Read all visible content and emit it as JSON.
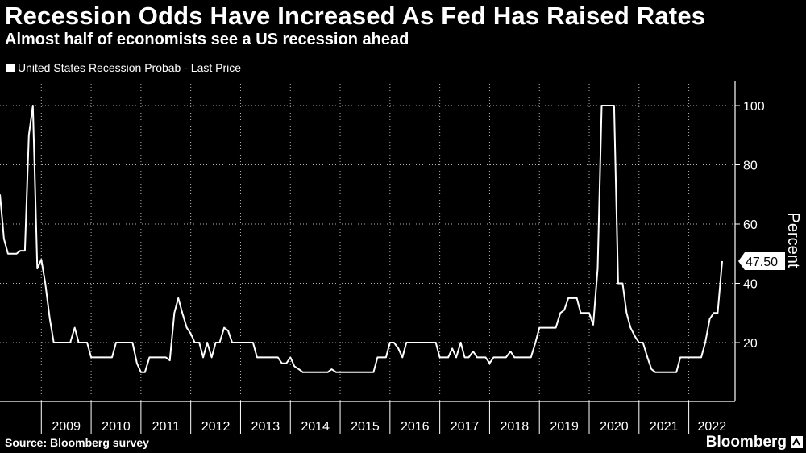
{
  "header": {
    "title": "Recession Odds Have Increased As Fed Has Raised Rates",
    "subtitle": "Almost half of economists see a US recession ahead"
  },
  "legend": {
    "label": "United States Recession Probab - Last Price"
  },
  "footer": {
    "source": "Source: Bloomberg survey",
    "brand": "Bloomberg"
  },
  "colors": {
    "background": "#000000",
    "line": "#ffffff",
    "grid": "#ffffff"
  },
  "chart_data": {
    "type": "line",
    "title": "Recession Odds Have Increased As Fed Has Raised Rates",
    "subtitle": "Almost half of economists see a US recession ahead",
    "xlabel": "",
    "ylabel": "Percent",
    "xlim": [
      2008.17,
      2022.97
    ],
    "ylim": [
      0,
      110
    ],
    "yticks": [
      20,
      40,
      60,
      80,
      100
    ],
    "ytick_labels": [
      "20",
      "40",
      "60",
      "80",
      "100"
    ],
    "xtick_labels": [
      "2009",
      "2010",
      "2011",
      "2012",
      "2013",
      "2014",
      "2015",
      "2016",
      "2017",
      "2018",
      "2019",
      "2020",
      "2021",
      "2022"
    ],
    "grid": "dotted",
    "legend_position": "top-left",
    "last_value_label": "47.50",
    "series": [
      {
        "name": "United States Recession Probab - Last Price",
        "points": [
          [
            2008.17,
            70
          ],
          [
            2008.25,
            55
          ],
          [
            2008.33,
            50
          ],
          [
            2008.42,
            50
          ],
          [
            2008.5,
            50
          ],
          [
            2008.58,
            51
          ],
          [
            2008.67,
            51
          ],
          [
            2008.75,
            90
          ],
          [
            2008.83,
            100
          ],
          [
            2008.92,
            45
          ],
          [
            2009.0,
            48
          ],
          [
            2009.08,
            40
          ],
          [
            2009.17,
            28
          ],
          [
            2009.25,
            20
          ],
          [
            2009.33,
            20
          ],
          [
            2009.42,
            20
          ],
          [
            2009.5,
            20
          ],
          [
            2009.58,
            20
          ],
          [
            2009.67,
            25
          ],
          [
            2009.75,
            20
          ],
          [
            2009.83,
            20
          ],
          [
            2009.92,
            20
          ],
          [
            2010.0,
            15
          ],
          [
            2010.08,
            15
          ],
          [
            2010.17,
            15
          ],
          [
            2010.25,
            15
          ],
          [
            2010.33,
            15
          ],
          [
            2010.42,
            15
          ],
          [
            2010.5,
            20
          ],
          [
            2010.58,
            20
          ],
          [
            2010.67,
            20
          ],
          [
            2010.75,
            20
          ],
          [
            2010.83,
            20
          ],
          [
            2010.92,
            13
          ],
          [
            2011.0,
            10
          ],
          [
            2011.08,
            10
          ],
          [
            2011.17,
            15
          ],
          [
            2011.25,
            15
          ],
          [
            2011.33,
            15
          ],
          [
            2011.42,
            15
          ],
          [
            2011.5,
            15
          ],
          [
            2011.58,
            14
          ],
          [
            2011.67,
            30
          ],
          [
            2011.75,
            35
          ],
          [
            2011.83,
            30
          ],
          [
            2011.92,
            25
          ],
          [
            2012.0,
            23
          ],
          [
            2012.08,
            20
          ],
          [
            2012.17,
            20
          ],
          [
            2012.25,
            15
          ],
          [
            2012.33,
            20
          ],
          [
            2012.42,
            15
          ],
          [
            2012.5,
            20
          ],
          [
            2012.58,
            20
          ],
          [
            2012.67,
            25
          ],
          [
            2012.75,
            24
          ],
          [
            2012.83,
            20
          ],
          [
            2012.92,
            20
          ],
          [
            2013.0,
            20
          ],
          [
            2013.08,
            20
          ],
          [
            2013.17,
            20
          ],
          [
            2013.25,
            20
          ],
          [
            2013.33,
            15
          ],
          [
            2013.42,
            15
          ],
          [
            2013.5,
            15
          ],
          [
            2013.58,
            15
          ],
          [
            2013.67,
            15
          ],
          [
            2013.75,
            15
          ],
          [
            2013.83,
            13
          ],
          [
            2013.92,
            13
          ],
          [
            2014.0,
            15
          ],
          [
            2014.08,
            12
          ],
          [
            2014.17,
            11
          ],
          [
            2014.25,
            10
          ],
          [
            2014.33,
            10
          ],
          [
            2014.42,
            10
          ],
          [
            2014.5,
            10
          ],
          [
            2014.58,
            10
          ],
          [
            2014.67,
            10
          ],
          [
            2014.75,
            10
          ],
          [
            2014.83,
            11
          ],
          [
            2014.92,
            10
          ],
          [
            2015.0,
            10
          ],
          [
            2015.08,
            10
          ],
          [
            2015.17,
            10
          ],
          [
            2015.25,
            10
          ],
          [
            2015.33,
            10
          ],
          [
            2015.42,
            10
          ],
          [
            2015.5,
            10
          ],
          [
            2015.58,
            10
          ],
          [
            2015.67,
            10
          ],
          [
            2015.75,
            15
          ],
          [
            2015.83,
            15
          ],
          [
            2015.92,
            15
          ],
          [
            2016.0,
            20
          ],
          [
            2016.08,
            20
          ],
          [
            2016.17,
            18
          ],
          [
            2016.25,
            15
          ],
          [
            2016.33,
            20
          ],
          [
            2016.42,
            20
          ],
          [
            2016.5,
            20
          ],
          [
            2016.58,
            20
          ],
          [
            2016.67,
            20
          ],
          [
            2016.75,
            20
          ],
          [
            2016.83,
            20
          ],
          [
            2016.92,
            20
          ],
          [
            2017.0,
            15
          ],
          [
            2017.08,
            15
          ],
          [
            2017.17,
            15
          ],
          [
            2017.25,
            18
          ],
          [
            2017.33,
            15
          ],
          [
            2017.42,
            20
          ],
          [
            2017.5,
            15
          ],
          [
            2017.58,
            15
          ],
          [
            2017.67,
            17
          ],
          [
            2017.75,
            15
          ],
          [
            2017.83,
            15
          ],
          [
            2017.92,
            15
          ],
          [
            2018.0,
            13
          ],
          [
            2018.08,
            15
          ],
          [
            2018.17,
            15
          ],
          [
            2018.25,
            15
          ],
          [
            2018.33,
            15
          ],
          [
            2018.42,
            17
          ],
          [
            2018.5,
            15
          ],
          [
            2018.58,
            15
          ],
          [
            2018.67,
            15
          ],
          [
            2018.75,
            15
          ],
          [
            2018.83,
            15
          ],
          [
            2018.92,
            20
          ],
          [
            2019.0,
            25
          ],
          [
            2019.08,
            25
          ],
          [
            2019.17,
            25
          ],
          [
            2019.25,
            25
          ],
          [
            2019.33,
            25
          ],
          [
            2019.42,
            30
          ],
          [
            2019.5,
            31
          ],
          [
            2019.58,
            35
          ],
          [
            2019.67,
            35
          ],
          [
            2019.75,
            35
          ],
          [
            2019.83,
            30
          ],
          [
            2019.92,
            30
          ],
          [
            2020.0,
            30
          ],
          [
            2020.08,
            26
          ],
          [
            2020.17,
            45
          ],
          [
            2020.25,
            100
          ],
          [
            2020.33,
            100
          ],
          [
            2020.42,
            100
          ],
          [
            2020.5,
            100
          ],
          [
            2020.58,
            40
          ],
          [
            2020.67,
            40
          ],
          [
            2020.75,
            30
          ],
          [
            2020.83,
            25
          ],
          [
            2020.92,
            22
          ],
          [
            2021.0,
            20
          ],
          [
            2021.08,
            20
          ],
          [
            2021.17,
            15
          ],
          [
            2021.25,
            11
          ],
          [
            2021.33,
            10
          ],
          [
            2021.42,
            10
          ],
          [
            2021.5,
            10
          ],
          [
            2021.58,
            10
          ],
          [
            2021.67,
            10
          ],
          [
            2021.75,
            10
          ],
          [
            2021.83,
            15
          ],
          [
            2021.92,
            15
          ],
          [
            2022.0,
            15
          ],
          [
            2022.08,
            15
          ],
          [
            2022.17,
            15
          ],
          [
            2022.25,
            15
          ],
          [
            2022.33,
            20
          ],
          [
            2022.42,
            28
          ],
          [
            2022.5,
            30
          ],
          [
            2022.58,
            30
          ],
          [
            2022.67,
            47.5
          ]
        ]
      }
    ]
  }
}
